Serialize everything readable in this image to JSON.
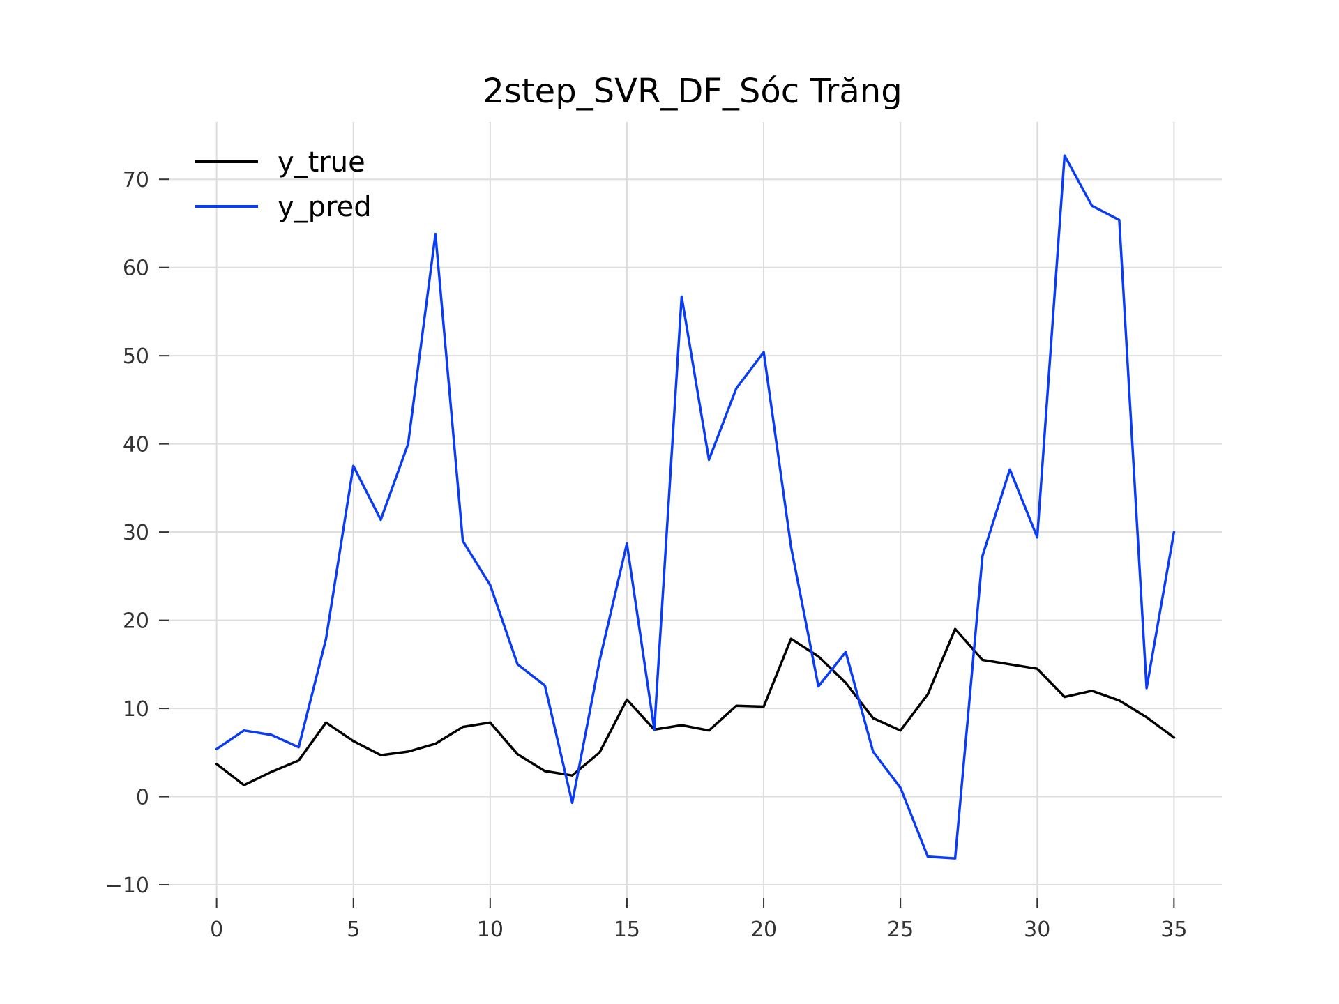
{
  "chart_data": {
    "type": "line",
    "title": "2step_SVR_DF_Sóc Trăng",
    "xlabel": "",
    "ylabel": "",
    "x": [
      0,
      1,
      2,
      3,
      4,
      5,
      6,
      7,
      8,
      9,
      10,
      11,
      12,
      13,
      14,
      15,
      16,
      17,
      18,
      19,
      20,
      21,
      22,
      23,
      24,
      25,
      26,
      27,
      28,
      29,
      30,
      31,
      32,
      33,
      34,
      35
    ],
    "xticks": [
      0,
      5,
      10,
      15,
      20,
      25,
      30,
      35
    ],
    "yticks": [
      -10,
      0,
      10,
      20,
      30,
      40,
      50,
      60,
      70
    ],
    "ytick_labels": [
      "−10",
      "0",
      "10",
      "20",
      "30",
      "40",
      "50",
      "60",
      "70"
    ],
    "xlim": [
      -1.75,
      36.75
    ],
    "ylim": [
      -11.5,
      76.5
    ],
    "grid": true,
    "legend_position": "top-left",
    "series": [
      {
        "name": "y_true",
        "color": "#000000",
        "values": [
          3.7,
          1.3,
          2.8,
          4.1,
          8.4,
          6.3,
          4.7,
          5.1,
          6.0,
          7.9,
          8.4,
          4.8,
          2.9,
          2.4,
          5.0,
          11.0,
          7.6,
          8.1,
          7.5,
          10.3,
          10.2,
          17.9,
          15.9,
          12.9,
          8.9,
          7.5,
          11.6,
          19.0,
          15.5,
          15.0,
          14.5,
          11.3,
          12.0,
          10.9,
          9.0,
          6.7
        ]
      },
      {
        "name": "y_pred",
        "color": "#0a3cf5",
        "values": [
          5.4,
          7.5,
          7.0,
          5.6,
          17.9,
          37.5,
          31.4,
          40.0,
          63.8,
          29.0,
          24.0,
          15.0,
          12.6,
          -0.7,
          15.4,
          28.7,
          7.6,
          56.7,
          38.2,
          46.3,
          50.4,
          28.3,
          12.5,
          16.4,
          5.1,
          1.0,
          -6.8,
          -7.0,
          27.3,
          37.1,
          29.4,
          72.7,
          67.0,
          65.4,
          12.3,
          30.0
        ]
      }
    ]
  }
}
